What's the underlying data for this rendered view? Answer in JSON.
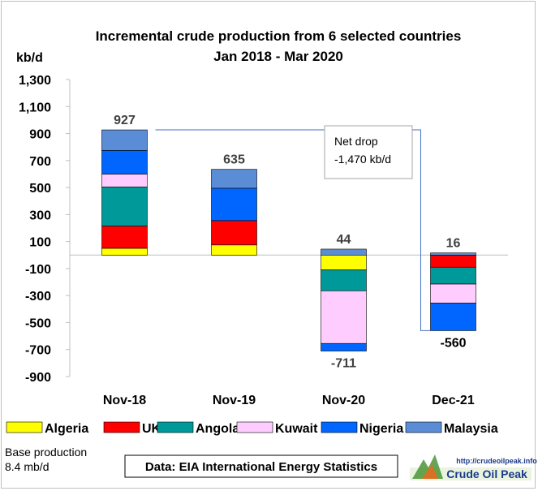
{
  "chart_data": {
    "type": "bar",
    "stacked": true,
    "title": "Incremental crude production from 6 selected countries",
    "subtitle": "Jan 2018 - Mar 2020",
    "ylabel": "kb/d",
    "ylim": [
      -900,
      1300
    ],
    "yticks": [
      1300,
      1100,
      900,
      700,
      500,
      300,
      100,
      -100,
      -300,
      -500,
      -700,
      -900
    ],
    "ytick_labels": [
      "1,300",
      "1,100",
      "900",
      "700",
      "500",
      "300",
      "100",
      "-100",
      "-300",
      "-500",
      "-700",
      "-900"
    ],
    "categories": [
      "Nov-18",
      "Nov-19",
      "Nov-20",
      "Dec-21"
    ],
    "series": [
      {
        "name": "Algeria",
        "color": "#ffff00",
        "values": [
          50,
          75,
          -110,
          0
        ]
      },
      {
        "name": "UK",
        "color": "#ff0000",
        "values": [
          165,
          180,
          0,
          -90
        ]
      },
      {
        "name": "Angola",
        "color": "#009999",
        "values": [
          290,
          0,
          -155,
          -125
        ]
      },
      {
        "name": "Kuwait",
        "color": "#ffccff",
        "values": [
          95,
          0,
          -390,
          -140
        ]
      },
      {
        "name": "Nigeria",
        "color": "#0066ff",
        "values": [
          175,
          240,
          -56,
          -205
        ]
      },
      {
        "name": "Malaysia",
        "color": "#5b8dd6",
        "values": [
          152,
          140,
          44,
          16
        ]
      }
    ],
    "bar_labels": [
      {
        "category": "Nov-18",
        "text": "927",
        "position": "top"
      },
      {
        "category": "Nov-19",
        "text": "635",
        "position": "top"
      },
      {
        "category": "Nov-20",
        "text": "44",
        "position": "top"
      },
      {
        "category": "Nov-20",
        "text": "-711",
        "position": "bottom"
      },
      {
        "category": "Dec-21",
        "text": "16",
        "position": "top"
      },
      {
        "category": "Dec-21",
        "text": "-560",
        "position": "side"
      }
    ],
    "annotation": {
      "line1": "Net drop",
      "line2": "-1,470 kb/d",
      "from_value": 927,
      "to_value": -560
    },
    "legend_position": "bottom",
    "grid": false,
    "colors": {
      "axis": "#bfbfbf",
      "bar_outline": "#000000",
      "connector": "#4472c4",
      "text": "#000000",
      "label": "#404040"
    }
  },
  "footer": {
    "base_line1": "Base production",
    "base_line2": "8.4 mb/d",
    "source": "Data: EIA International Energy Statistics",
    "logo_url_text": "http://crudeoilpeak.info",
    "logo_name": "Crude Oil Peak"
  }
}
